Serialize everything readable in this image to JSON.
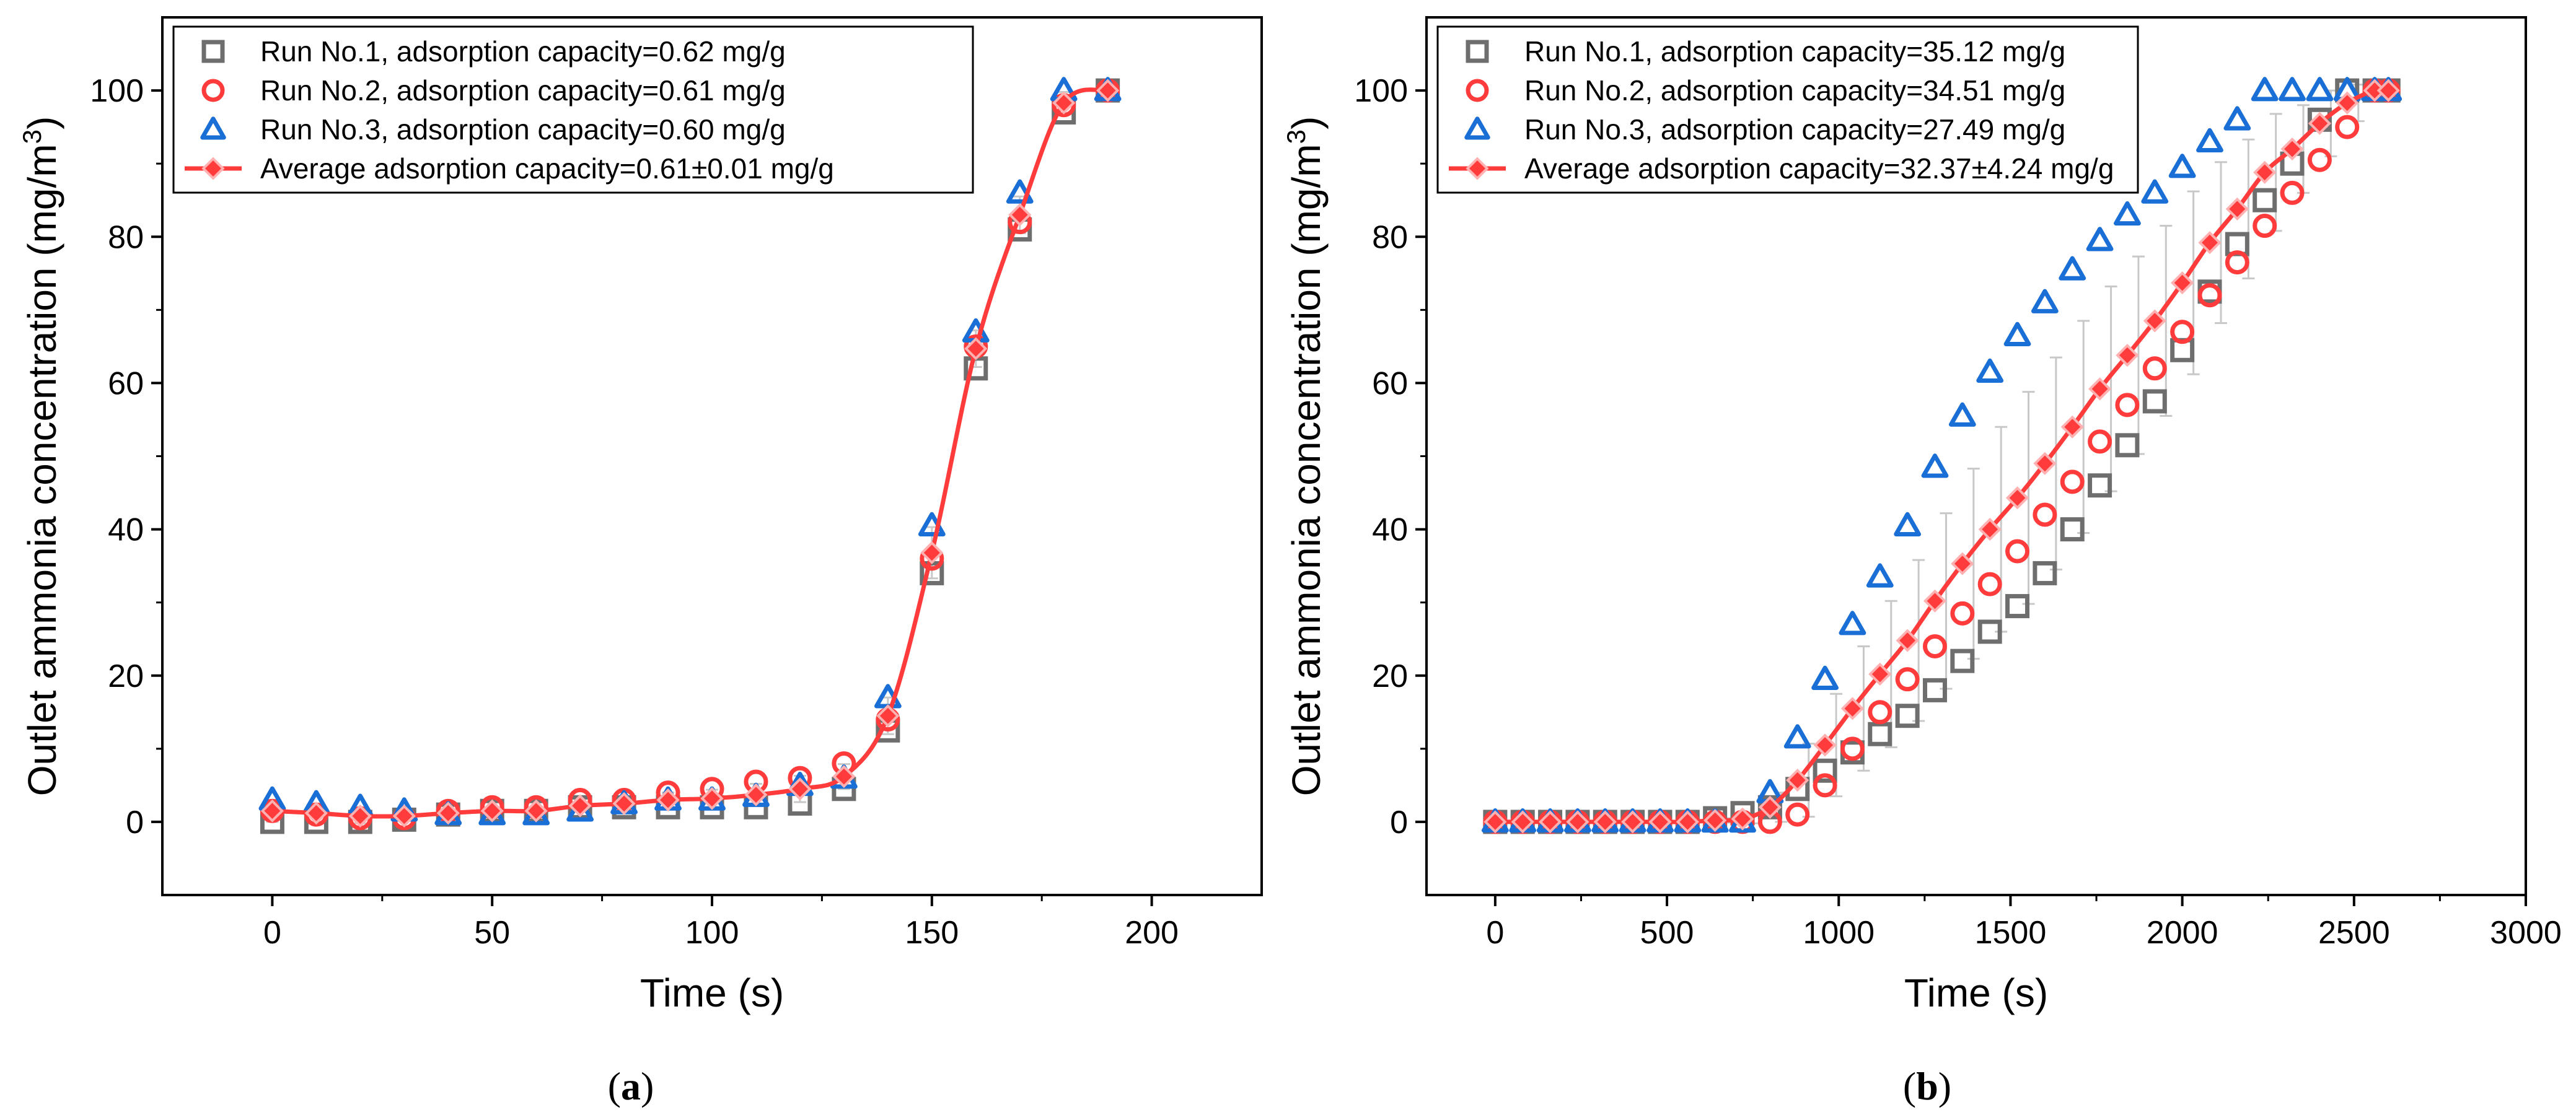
{
  "chart_data": [
    {
      "type": "scatter",
      "xlabel": "Time (s)",
      "ylabel_main": "Outlet ammonia concentration (mg/m",
      "ylabel_sup": "3",
      "ylabel_close": ")",
      "caption_open": "(",
      "caption_letter": "a",
      "caption_close": ")",
      "xlim": [
        -25,
        225
      ],
      "ylim": [
        -10,
        110
      ],
      "xticks": [
        0,
        50,
        100,
        150,
        200
      ],
      "yticks": [
        0,
        20,
        40,
        60,
        80,
        100
      ],
      "legend_position": "top-left",
      "x": [
        0,
        10,
        20,
        30,
        40,
        50,
        60,
        70,
        80,
        90,
        100,
        110,
        120,
        130,
        140,
        150,
        160,
        170,
        180,
        190
      ],
      "series": [
        {
          "name": "Run No.1, adsorption capacity=0.62 mg/g",
          "marker": "square",
          "color": "#6e6e6e",
          "values": [
            0,
            0,
            0,
            0.3,
            1,
            1.5,
            1.5,
            2,
            2,
            2,
            2,
            2,
            2.5,
            4.5,
            12.5,
            34,
            62,
            81,
            97,
            100
          ]
        },
        {
          "name": "Run No.2, adsorption capacity=0.61 mg/g",
          "marker": "circle",
          "color": "#ff3b3b",
          "values": [
            1.5,
            1,
            0.5,
            0.5,
            1.5,
            2,
            2,
            3,
            3,
            4,
            4.5,
            5.5,
            6,
            8,
            14,
            36,
            65,
            82,
            98,
            100
          ]
        },
        {
          "name": "Run No.3, adsorption capacity=0.60 mg/g",
          "marker": "triangle",
          "color": "#1a6fd6",
          "values": [
            3,
            2.5,
            2,
            1.5,
            1,
            1,
            1,
            1.5,
            2.5,
            3,
            3,
            3.5,
            5,
            6,
            17,
            40.5,
            67,
            86,
            100,
            100
          ]
        },
        {
          "name": "Average adsorption capacity=0.61±0.01 mg/g",
          "marker": "diamond-line",
          "color": "#ff3b3b",
          "values": [
            1.5,
            1.2,
            0.8,
            0.8,
            1.2,
            1.5,
            1.5,
            2.2,
            2.5,
            3,
            3.2,
            3.7,
            4.5,
            6.2,
            14.5,
            36.8,
            64.7,
            83,
            98.3,
            100
          ],
          "error": [
            1.5,
            1.2,
            1,
            0.6,
            0.5,
            0.5,
            0.5,
            0.7,
            0.5,
            1,
            1.2,
            1.5,
            1.8,
            1.7,
            2.5,
            3.5,
            2.5,
            2.5,
            1.5,
            0
          ]
        }
      ]
    },
    {
      "type": "scatter",
      "xlabel": "Time (s)",
      "ylabel_main": "Outlet ammonia concentration (mg/m",
      "ylabel_sup": "3",
      "ylabel_close": ")",
      "caption_open": "(",
      "caption_letter": "b",
      "caption_close": ")",
      "xlim": [
        -200,
        3000
      ],
      "ylim": [
        -10,
        110
      ],
      "xticks": [
        0,
        500,
        1000,
        1500,
        2000,
        2500,
        3000
      ],
      "yticks": [
        0,
        20,
        40,
        60,
        80,
        100
      ],
      "legend_position": "top-left",
      "x": [
        0,
        80,
        160,
        240,
        320,
        400,
        480,
        560,
        640,
        720,
        800,
        880,
        960,
        1040,
        1120,
        1200,
        1280,
        1360,
        1440,
        1520,
        1600,
        1680,
        1760,
        1840,
        1920,
        2000,
        2080,
        2160,
        2240,
        2320,
        2400,
        2480,
        2560,
        2600
      ],
      "series": [
        {
          "name": "Run No.1, adsorption capacity=35.12 mg/g",
          "marker": "square",
          "color": "#6e6e6e",
          "values": [
            0,
            0,
            0,
            0,
            0,
            0,
            0,
            0,
            0.5,
            1.2,
            2,
            4.5,
            7,
            9.5,
            12,
            14.5,
            18,
            22,
            26,
            29.5,
            34,
            40,
            46,
            51.5,
            57.5,
            64.5,
            72.5,
            79,
            85,
            90,
            96,
            100,
            100,
            100
          ]
        },
        {
          "name": "Run No.2, adsorption capacity=34.51 mg/g",
          "marker": "circle",
          "color": "#ff3b3b",
          "values": [
            0,
            0,
            0,
            0,
            0,
            0,
            0,
            0,
            0,
            0,
            0,
            1,
            5,
            10,
            15,
            19.5,
            24,
            28.5,
            32.5,
            37,
            42,
            46.5,
            52,
            57,
            62,
            67,
            72,
            76.5,
            81.5,
            86,
            90.5,
            95,
            100,
            100
          ]
        },
        {
          "name": "Run No.3, adsorption capacity=27.49 mg/g",
          "marker": "triangle",
          "color": "#1a6fd6",
          "values": [
            0,
            0,
            0,
            0,
            0,
            0,
            0,
            0,
            0,
            0,
            4,
            11.5,
            19.5,
            27,
            33.5,
            40.5,
            48.5,
            55.5,
            61.5,
            66.5,
            71,
            75.5,
            79.5,
            83,
            86,
            89.5,
            93,
            96,
            100,
            100,
            100,
            100,
            100,
            100
          ]
        },
        {
          "name": "Average adsorption capacity=32.37±4.24 mg/g",
          "marker": "diamond-line",
          "color": "#ff3b3b",
          "values": [
            0,
            0,
            0,
            0,
            0,
            0,
            0,
            0,
            0.2,
            0.4,
            2,
            5.7,
            10.5,
            15.5,
            20.2,
            24.8,
            30.2,
            35.3,
            40,
            44.3,
            49,
            54,
            59.2,
            63.8,
            68.5,
            73.7,
            79.2,
            83.8,
            88.8,
            92,
            95.5,
            98.3,
            100,
            100
          ],
          "error": [
            0,
            0,
            0,
            0,
            0,
            0,
            0,
            0,
            0.3,
            0.6,
            2,
            5,
            7,
            8.5,
            10,
            11,
            12,
            13,
            14,
            14.5,
            14.5,
            14.5,
            14,
            13.5,
            13,
            12.5,
            11,
            9.5,
            8,
            6,
            4.5,
            2.5,
            0,
            0
          ]
        }
      ]
    }
  ]
}
